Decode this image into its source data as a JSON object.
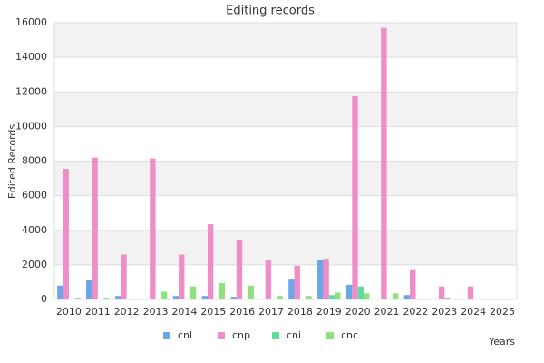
{
  "chart_data": {
    "type": "bar",
    "title": "Editing records",
    "x_label": "Years",
    "y_label": "Edited Records",
    "categories": [
      "2010",
      "2011",
      "2012",
      "2013",
      "2014",
      "2015",
      "2016",
      "2017",
      "2018",
      "2019",
      "2020",
      "2021",
      "2022",
      "2023",
      "2024",
      "2025"
    ],
    "series": [
      {
        "name": "cnl",
        "color": "#6aa6e8",
        "values": [
          800,
          1150,
          200,
          50,
          200,
          200,
          150,
          50,
          1200,
          2300,
          850,
          50,
          250,
          0,
          0,
          0
        ]
      },
      {
        "name": "cnp",
        "color": "#f08cc6",
        "values": [
          7550,
          8200,
          2600,
          8150,
          2600,
          4350,
          3450,
          2250,
          1950,
          2350,
          11750,
          15700,
          1750,
          750,
          750,
          50
        ]
      },
      {
        "name": "cni",
        "color": "#5fdaa0",
        "values": [
          0,
          0,
          0,
          0,
          0,
          0,
          0,
          0,
          0,
          250,
          750,
          0,
          0,
          100,
          0,
          0
        ]
      },
      {
        "name": "cnc",
        "color": "#8ee27e",
        "values": [
          100,
          100,
          50,
          450,
          750,
          950,
          800,
          200,
          200,
          400,
          350,
          350,
          0,
          50,
          0,
          0
        ]
      }
    ],
    "ylim": [
      0,
      16000
    ],
    "yticks": [
      0,
      2000,
      4000,
      6000,
      8000,
      10000,
      12000,
      14000,
      16000
    ],
    "grid": true
  }
}
